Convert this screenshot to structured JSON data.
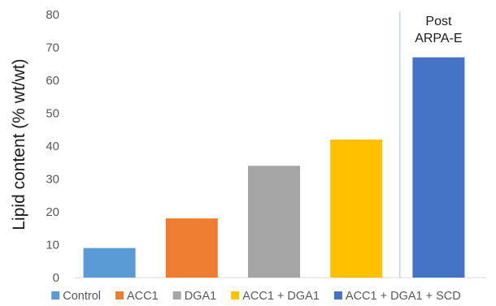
{
  "chart_data": {
    "type": "bar",
    "title": "",
    "xlabel": "",
    "ylabel": "Lipid content (% wt/wt)",
    "ylim": [
      0,
      80
    ],
    "yticks": [
      0,
      10,
      20,
      30,
      40,
      50,
      60,
      70,
      80
    ],
    "grid": false,
    "legend_position": "bottom",
    "categories": [
      "Control",
      "ACC1",
      "DGA1",
      "ACC1 + DGA1",
      "ACC1 + DGA1 + SCD"
    ],
    "values": [
      9,
      18,
      34,
      42,
      67
    ],
    "colors": [
      "#5B9BD5",
      "#ED7D31",
      "#A5A5A5",
      "#FFC000",
      "#4472C4"
    ],
    "annotation": {
      "lines": [
        "Post",
        "ARPA-E"
      ],
      "divider_between": [
        "ACC1 + DGA1",
        "ACC1 + DGA1 + SCD"
      ],
      "divider_color": "#9DC3E6"
    }
  }
}
